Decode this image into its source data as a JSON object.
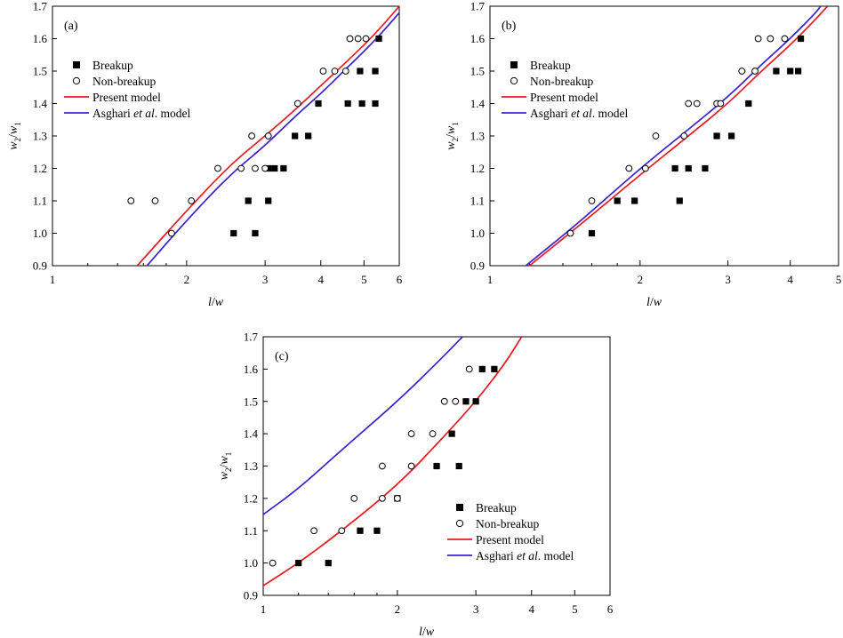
{
  "figure": {
    "legend": {
      "breakup": "Breakup",
      "non_breakup": "Non-breakup",
      "present": "Present model",
      "asghari_prefix": "Asghari ",
      "asghari_italic": "et al",
      "asghari_suffix": ". model"
    },
    "xlabel_l": "l",
    "xlabel_slash": "/",
    "xlabel_w": "w",
    "ylabel_w": "w",
    "ylabel_sub2": "2",
    "ylabel_slash": "/",
    "ylabel_sub1": "1"
  },
  "chart_data": [
    {
      "panel": "(a)",
      "type": "scatter",
      "x_scale": "log",
      "xlim": [
        1,
        6
      ],
      "ylim": [
        0.9,
        1.7
      ],
      "x_ticks": [
        "1",
        "2",
        "3",
        "4",
        "5",
        "6"
      ],
      "y_ticks": [
        "0.9",
        "1.0",
        "1.1",
        "1.2",
        "1.3",
        "1.4",
        "1.5",
        "1.6",
        "1.7"
      ],
      "legend_position": "top-left",
      "series": [
        {
          "name": "Breakup",
          "marker": "filled-square",
          "points": [
            [
              2.55,
              1.0
            ],
            [
              2.85,
              1.0
            ],
            [
              2.75,
              1.1
            ],
            [
              3.05,
              1.1
            ],
            [
              3.05,
              1.2
            ],
            [
              3.15,
              1.2
            ],
            [
              3.3,
              1.2
            ],
            [
              3.5,
              1.3
            ],
            [
              3.75,
              1.3
            ],
            [
              3.95,
              1.4
            ],
            [
              4.6,
              1.4
            ],
            [
              4.95,
              1.4
            ],
            [
              5.3,
              1.4
            ],
            [
              4.9,
              1.5
            ],
            [
              5.3,
              1.5
            ],
            [
              5.4,
              1.6
            ]
          ]
        },
        {
          "name": "Non-breakup",
          "marker": "open-circle",
          "points": [
            [
              1.5,
              1.1
            ],
            [
              1.7,
              1.1
            ],
            [
              2.05,
              1.1
            ],
            [
              1.85,
              1.0
            ],
            [
              2.35,
              1.2
            ],
            [
              2.65,
              1.2
            ],
            [
              2.85,
              1.2
            ],
            [
              3.0,
              1.2
            ],
            [
              2.8,
              1.3
            ],
            [
              3.05,
              1.3
            ],
            [
              3.55,
              1.4
            ],
            [
              4.05,
              1.5
            ],
            [
              4.3,
              1.5
            ],
            [
              4.55,
              1.5
            ],
            [
              4.65,
              1.6
            ],
            [
              4.85,
              1.6
            ],
            [
              5.05,
              1.6
            ]
          ]
        },
        {
          "name": "Present model",
          "type": "line",
          "color": "#e8191f",
          "points": [
            [
              1.55,
              0.9
            ],
            [
              2.0,
              1.07
            ],
            [
              2.5,
              1.21
            ],
            [
              3.0,
              1.3
            ],
            [
              3.5,
              1.38
            ],
            [
              4.0,
              1.455
            ],
            [
              4.5,
              1.52
            ],
            [
              5.0,
              1.58
            ],
            [
              5.5,
              1.64
            ],
            [
              6.0,
              1.7
            ]
          ]
        },
        {
          "name": "Asghari et al. model",
          "type": "line",
          "color": "#3a1fd0",
          "points": [
            [
              1.63,
              0.9
            ],
            [
              2.0,
              1.04
            ],
            [
              2.5,
              1.18
            ],
            [
              3.0,
              1.27
            ],
            [
              3.5,
              1.36
            ],
            [
              4.0,
              1.43
            ],
            [
              4.5,
              1.5
            ],
            [
              5.0,
              1.56
            ],
            [
              5.5,
              1.62
            ],
            [
              6.0,
              1.68
            ]
          ]
        }
      ]
    },
    {
      "panel": "(b)",
      "type": "scatter",
      "x_scale": "log",
      "xlim": [
        1,
        5
      ],
      "ylim": [
        0.9,
        1.7
      ],
      "x_ticks": [
        "1",
        "2",
        "3",
        "4",
        "5"
      ],
      "y_ticks": [
        "0.9",
        "1.0",
        "1.1",
        "1.2",
        "1.3",
        "1.4",
        "1.5",
        "1.6",
        "1.7"
      ],
      "legend_position": "top-left",
      "series": [
        {
          "name": "Breakup",
          "marker": "filled-square",
          "points": [
            [
              1.6,
              1.0
            ],
            [
              1.8,
              1.1
            ],
            [
              1.95,
              1.1
            ],
            [
              2.4,
              1.1
            ],
            [
              2.35,
              1.2
            ],
            [
              2.5,
              1.2
            ],
            [
              2.7,
              1.2
            ],
            [
              2.85,
              1.3
            ],
            [
              3.05,
              1.3
            ],
            [
              3.3,
              1.4
            ],
            [
              3.75,
              1.5
            ],
            [
              4.0,
              1.5
            ],
            [
              4.15,
              1.5
            ],
            [
              4.2,
              1.6
            ]
          ]
        },
        {
          "name": "Non-breakup",
          "marker": "open-circle",
          "points": [
            [
              1.45,
              1.0
            ],
            [
              1.6,
              1.1
            ],
            [
              1.9,
              1.2
            ],
            [
              2.05,
              1.2
            ],
            [
              2.15,
              1.3
            ],
            [
              2.45,
              1.3
            ],
            [
              2.5,
              1.4
            ],
            [
              2.6,
              1.4
            ],
            [
              2.85,
              1.4
            ],
            [
              2.9,
              1.4
            ],
            [
              3.2,
              1.5
            ],
            [
              3.4,
              1.5
            ],
            [
              3.45,
              1.6
            ],
            [
              3.65,
              1.6
            ],
            [
              3.9,
              1.6
            ]
          ]
        },
        {
          "name": "Present model",
          "type": "line",
          "color": "#e8191f",
          "points": [
            [
              1.2,
              0.9
            ],
            [
              1.5,
              1.02
            ],
            [
              2.0,
              1.18
            ],
            [
              2.5,
              1.3
            ],
            [
              3.0,
              1.4
            ],
            [
              3.5,
              1.5
            ],
            [
              4.0,
              1.58
            ],
            [
              4.5,
              1.66
            ],
            [
              4.75,
              1.7
            ]
          ]
        },
        {
          "name": "Asghari et al. model",
          "type": "line",
          "color": "#3a1fd0",
          "points": [
            [
              1.18,
              0.9
            ],
            [
              1.5,
              1.03
            ],
            [
              2.0,
              1.2
            ],
            [
              2.5,
              1.32
            ],
            [
              3.0,
              1.42
            ],
            [
              3.5,
              1.52
            ],
            [
              4.0,
              1.6
            ],
            [
              4.5,
              1.68
            ],
            [
              4.6,
              1.7
            ]
          ]
        }
      ]
    },
    {
      "panel": "(c)",
      "type": "scatter",
      "x_scale": "log",
      "xlim": [
        1,
        6
      ],
      "ylim": [
        0.9,
        1.7
      ],
      "x_ticks": [
        "1",
        "2",
        "3",
        "4",
        "5",
        "6"
      ],
      "y_ticks": [
        "0.9",
        "1.0",
        "1.1",
        "1.2",
        "1.3",
        "1.4",
        "1.5",
        "1.6",
        "1.7"
      ],
      "legend_position": "bottom-right",
      "series": [
        {
          "name": "Breakup",
          "marker": "filled-square",
          "points": [
            [
              1.2,
              1.0
            ],
            [
              1.4,
              1.0
            ],
            [
              1.65,
              1.1
            ],
            [
              1.8,
              1.1
            ],
            [
              2.0,
              1.2
            ],
            [
              2.45,
              1.3
            ],
            [
              2.75,
              1.3
            ],
            [
              2.65,
              1.4
            ],
            [
              2.85,
              1.5
            ],
            [
              3.0,
              1.5
            ],
            [
              3.1,
              1.6
            ],
            [
              3.3,
              1.6
            ]
          ]
        },
        {
          "name": "Non-breakup",
          "marker": "open-circle",
          "points": [
            [
              1.05,
              1.0
            ],
            [
              1.3,
              1.1
            ],
            [
              1.5,
              1.1
            ],
            [
              1.6,
              1.2
            ],
            [
              1.85,
              1.2
            ],
            [
              2.0,
              1.2
            ],
            [
              1.85,
              1.3
            ],
            [
              2.15,
              1.3
            ],
            [
              2.15,
              1.4
            ],
            [
              2.4,
              1.4
            ],
            [
              2.55,
              1.5
            ],
            [
              2.7,
              1.5
            ],
            [
              2.9,
              1.6
            ]
          ]
        },
        {
          "name": "Present model",
          "type": "line",
          "color": "#e8191f",
          "points": [
            [
              1.0,
              0.93
            ],
            [
              1.2,
              1.0
            ],
            [
              1.5,
              1.1
            ],
            [
              2.0,
              1.24
            ],
            [
              2.5,
              1.38
            ],
            [
              3.0,
              1.5
            ],
            [
              3.5,
              1.62
            ],
            [
              3.8,
              1.7
            ]
          ]
        },
        {
          "name": "Asghari et al. model",
          "type": "line",
          "color": "#3a1fd0",
          "points": [
            [
              1.0,
              1.15
            ],
            [
              1.2,
              1.23
            ],
            [
              1.5,
              1.35
            ],
            [
              2.0,
              1.5
            ],
            [
              2.5,
              1.63
            ],
            [
              2.8,
              1.7
            ]
          ]
        }
      ]
    }
  ]
}
